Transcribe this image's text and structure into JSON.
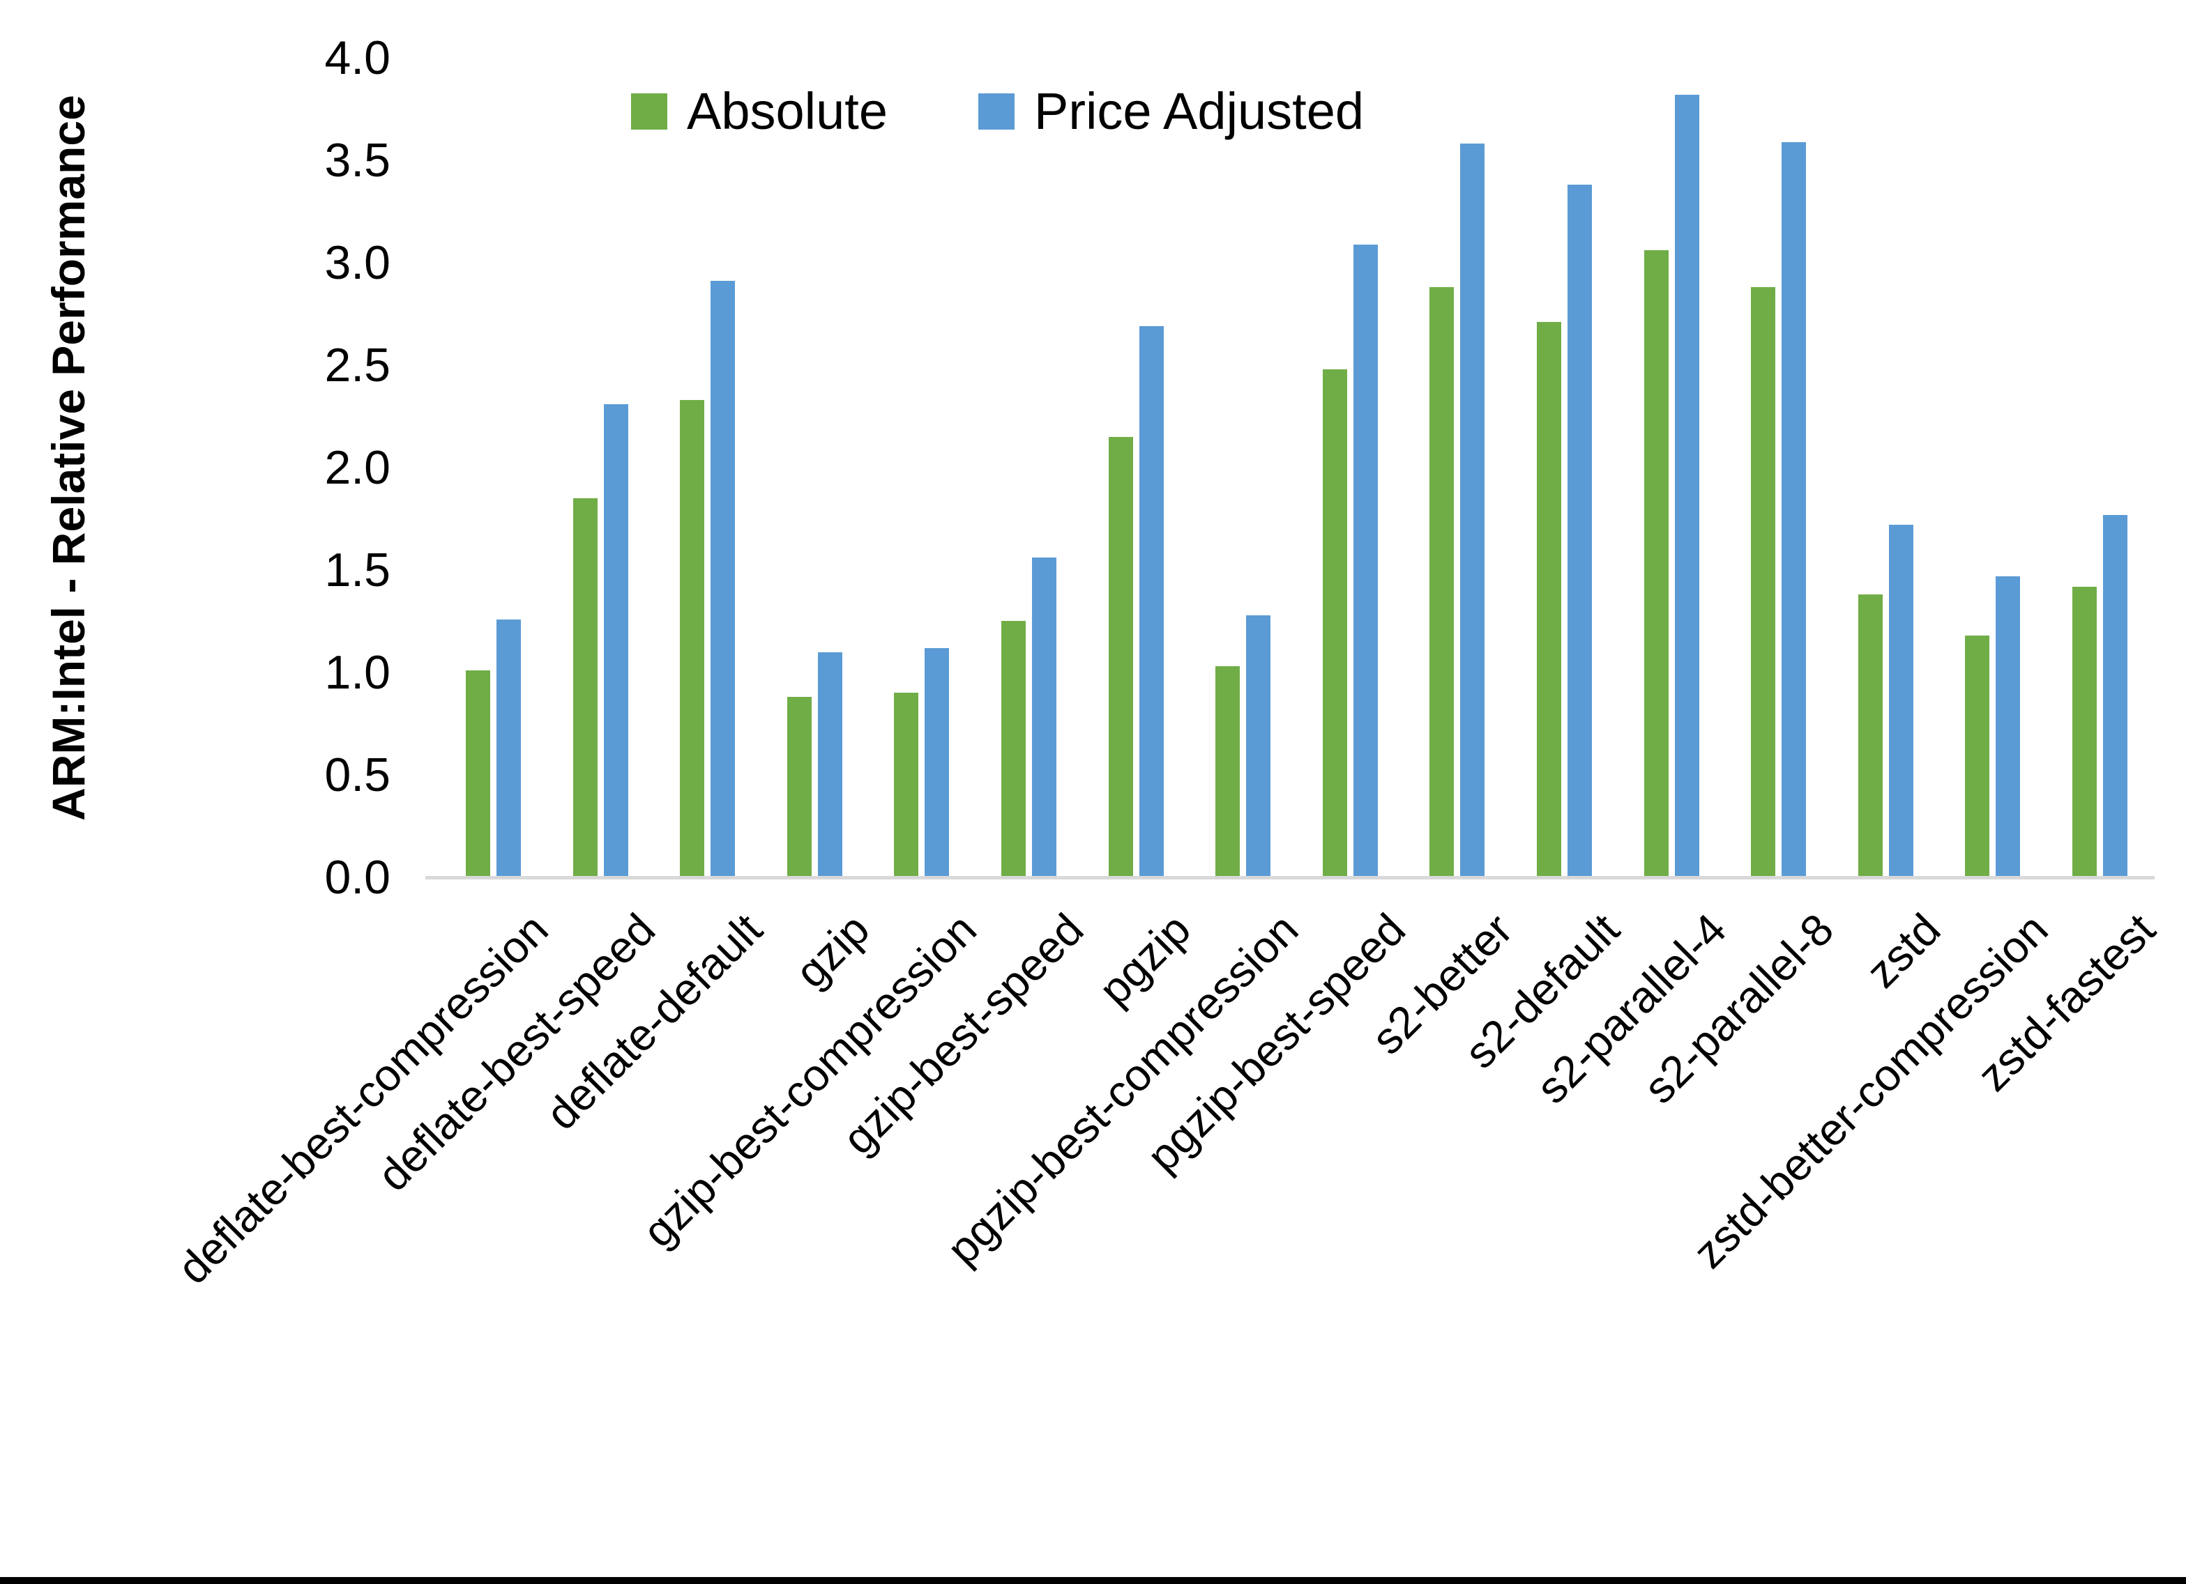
{
  "chart_data": {
    "type": "bar",
    "title": "",
    "ylabel": "ARM:Intel - Relative Performance",
    "xlabel": "",
    "ylim": [
      0.0,
      4.0
    ],
    "ytick_labels": [
      "0.0",
      "0.5",
      "1.0",
      "1.5",
      "2.0",
      "2.5",
      "3.0",
      "3.5",
      "4.0"
    ],
    "grid": false,
    "legend_position": "top",
    "axis_line_color": "#D9D9D9",
    "background_color": "#ffffff",
    "categories": [
      "deflate-best-compression",
      "deflate-best-speed",
      "deflate-default",
      "gzip",
      "gzip-best-compression",
      "gzip-best-speed",
      "pgzip",
      "pgzip-best-compression",
      "pgzip-best-speed",
      "s2-better",
      "s2-default",
      "s2-parallel-4",
      "s2-parallel-8",
      "zstd",
      "zstd-better-compression",
      "zstd-fastest"
    ],
    "series": [
      {
        "name": "Absolute",
        "color": "#70AD47",
        "values": [
          1.01,
          1.85,
          2.33,
          0.88,
          0.9,
          1.25,
          2.15,
          1.03,
          2.48,
          2.88,
          2.71,
          3.06,
          2.88,
          1.38,
          1.18,
          1.42
        ]
      },
      {
        "name": "Price Adjusted",
        "color": "#5B9BD5",
        "values": [
          1.26,
          2.31,
          2.91,
          1.1,
          1.12,
          1.56,
          2.69,
          1.28,
          3.09,
          3.58,
          3.38,
          3.82,
          3.59,
          1.72,
          1.47,
          1.77
        ]
      }
    ]
  }
}
